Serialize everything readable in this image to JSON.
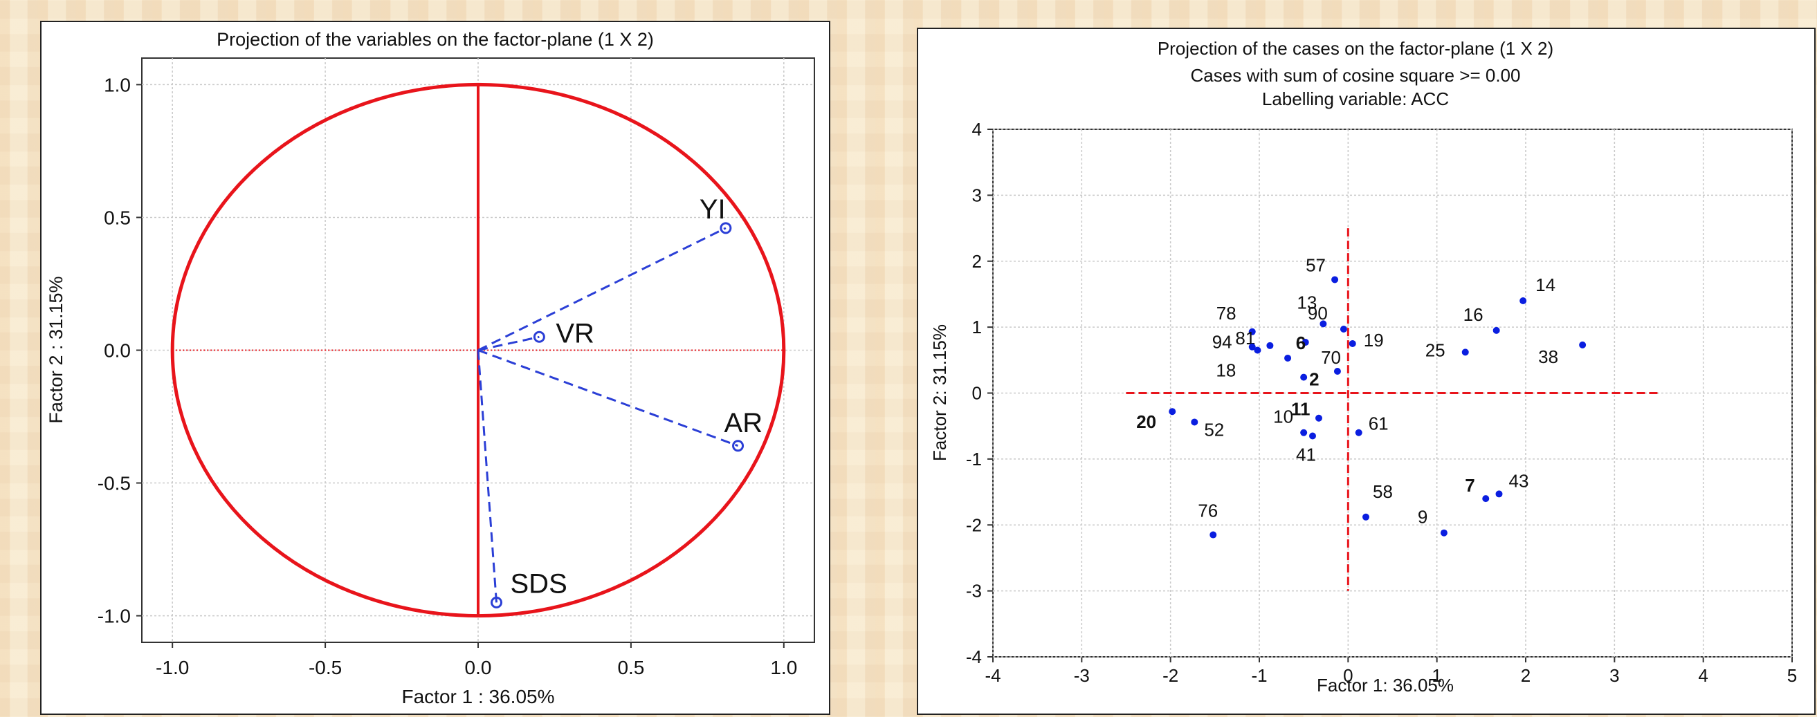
{
  "chart_data": [
    {
      "type": "scatter",
      "subtype": "correlation-circle",
      "title": "Projection of the variables on the factor-plane (1 X 2)",
      "xlabel": "Factor 1 : 36.05%",
      "ylabel": "Factor 2 : 31.15%",
      "xlim": [
        -1.1,
        1.1
      ],
      "ylim": [
        -1.1,
        1.1
      ],
      "xticks": [
        "-1.0",
        "-0.5",
        "0.0",
        "0.5",
        "1.0"
      ],
      "yticks": [
        "1.0",
        "0.5",
        "0.0",
        "-0.5",
        "-1.0"
      ],
      "grid": true,
      "circle_color": "#e8141b",
      "vector_color": "#2b3fd6",
      "points": [
        {
          "label": "YI",
          "x": 0.81,
          "y": 0.46
        },
        {
          "label": "VR",
          "x": 0.2,
          "y": 0.05
        },
        {
          "label": "AR",
          "x": 0.85,
          "y": -0.36
        },
        {
          "label": "SDS",
          "x": 0.06,
          "y": -0.95
        }
      ]
    },
    {
      "type": "scatter",
      "title": "Projection of the cases on the factor-plane (1 X 2)",
      "subtitle": "Cases with sum of cosine square >= 0.00",
      "subtitle2": "Labelling variable: ACC",
      "xlabel": "Factor 1: 36.05%",
      "ylabel": "Factor 2: 31.15%",
      "xlim": [
        -4,
        5
      ],
      "ylim": [
        -4,
        4
      ],
      "xticks": [
        "-4",
        "-3",
        "-2",
        "-1",
        "0",
        "1",
        "2",
        "3",
        "4",
        "5"
      ],
      "yticks": [
        "4",
        "3",
        "2",
        "1",
        "0",
        "-1",
        "-2",
        "-3",
        "-4"
      ],
      "grid": true,
      "point_color": "#0a1ee0",
      "axis_line_color": "#e8141b",
      "points": [
        {
          "label": "57",
          "x": -0.15,
          "y": 1.72
        },
        {
          "label": "14",
          "x": 1.97,
          "y": 1.4
        },
        {
          "label": "13",
          "x": -0.28,
          "y": 1.05
        },
        {
          "label": "90",
          "x": -0.05,
          "y": 0.97
        },
        {
          "label": "78",
          "x": -1.08,
          "y": 0.93
        },
        {
          "label": "16",
          "x": 1.67,
          "y": 0.95
        },
        {
          "label": "81",
          "x": -0.88,
          "y": 0.72
        },
        {
          "label": "94",
          "x": -1.08,
          "y": 0.7
        },
        {
          "label": "19",
          "x": 0.05,
          "y": 0.75
        },
        {
          "label": "38",
          "x": 2.64,
          "y": 0.73
        },
        {
          "label": "6",
          "x": -0.48,
          "y": 0.77,
          "bold": true
        },
        {
          "label": "25",
          "x": 1.32,
          "y": 0.62
        },
        {
          "label": "70",
          "x": -0.68,
          "y": 0.53
        },
        {
          "label": "18",
          "x": -1.02,
          "y": 0.65
        },
        {
          "label": "2",
          "x": -0.5,
          "y": 0.24,
          "bold": true
        },
        {
          "label": "",
          "x": -0.12,
          "y": 0.33
        },
        {
          "label": "20",
          "x": -1.98,
          "y": -0.28,
          "bold": true
        },
        {
          "label": "52",
          "x": -1.73,
          "y": -0.44
        },
        {
          "label": "11",
          "x": -0.33,
          "y": -0.38,
          "bold": true
        },
        {
          "label": "10",
          "x": -0.5,
          "y": -0.6
        },
        {
          "label": "61",
          "x": 0.12,
          "y": -0.6
        },
        {
          "label": "41",
          "x": -0.4,
          "y": -0.65
        },
        {
          "label": "7",
          "x": 1.55,
          "y": -1.6,
          "bold": true
        },
        {
          "label": "43",
          "x": 1.7,
          "y": -1.53
        },
        {
          "label": "58",
          "x": 0.2,
          "y": -1.88
        },
        {
          "label": "9",
          "x": 1.08,
          "y": -2.12
        },
        {
          "label": "76",
          "x": -1.52,
          "y": -2.15
        }
      ]
    }
  ]
}
